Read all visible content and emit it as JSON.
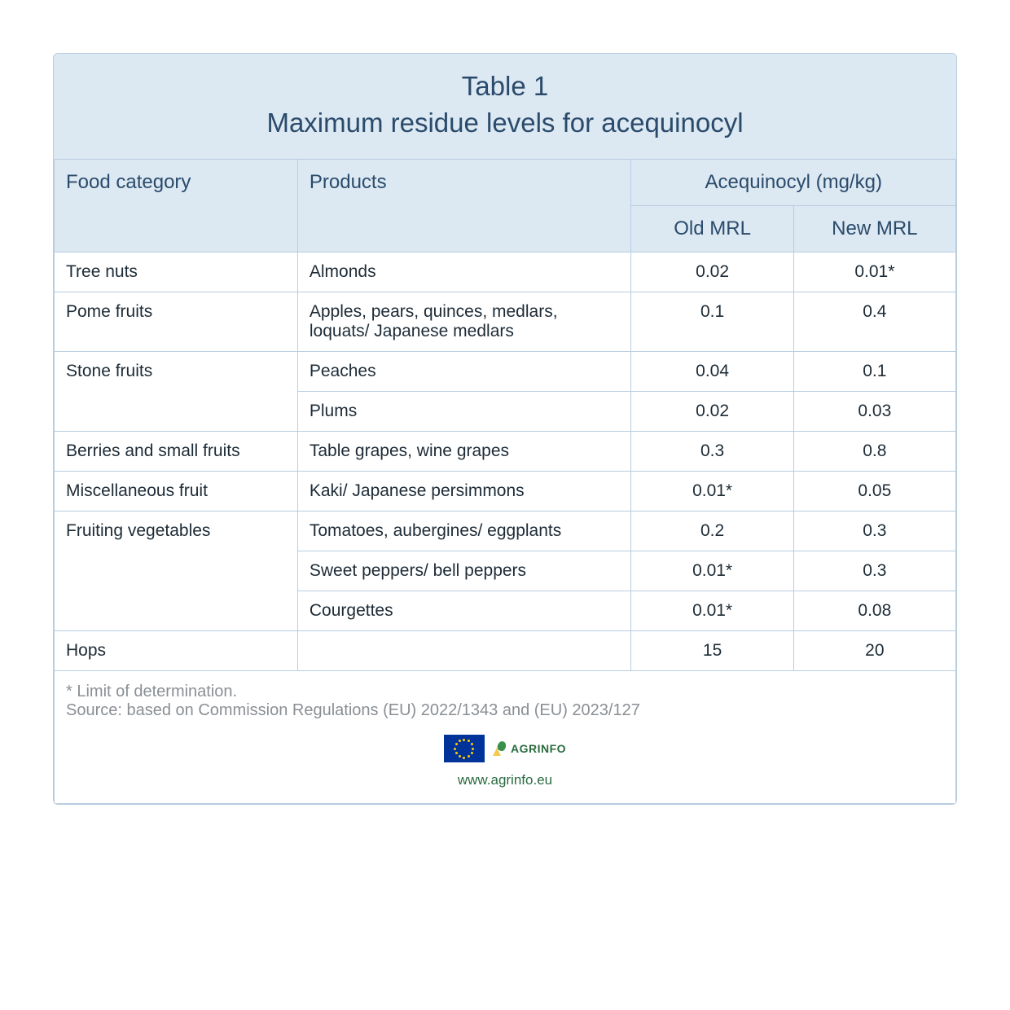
{
  "title": {
    "line1": "Table 1",
    "line2": "Maximum residue levels for acequinocyl"
  },
  "headers": {
    "food_category": "Food category",
    "products": "Products",
    "substance": "Acequinocyl (mg/kg)",
    "old_mrl": "Old MRL",
    "new_mrl": "New MRL"
  },
  "rows": [
    {
      "category": "Tree nuts",
      "product": "Almonds",
      "old": "0.02",
      "new": "0.01*",
      "rowspan": 1
    },
    {
      "category": "Pome fruits",
      "product": "Apples, pears, quinces, medlars, loquats/ Japanese medlars",
      "old": "0.1",
      "new": "0.4",
      "rowspan": 1
    },
    {
      "category": "Stone fruits",
      "product": "Peaches",
      "old": "0.04",
      "new": "0.1",
      "rowspan": 2
    },
    {
      "category": "",
      "product": "Plums",
      "old": "0.02",
      "new": "0.03",
      "rowspan": 0
    },
    {
      "category": "Berries and small fruits",
      "product": "Table grapes, wine grapes",
      "old": "0.3",
      "new": "0.8",
      "rowspan": 1
    },
    {
      "category": "Miscellaneous fruit",
      "product": "Kaki/ Japanese persimmons",
      "old": "0.01*",
      "new": "0.05",
      "rowspan": 1
    },
    {
      "category": "Fruiting vegetables",
      "product": "Tomatoes, aubergines/ eggplants",
      "old": "0.2",
      "new": "0.3",
      "rowspan": 3
    },
    {
      "category": "",
      "product": "Sweet peppers/ bell peppers",
      "old": "0.01*",
      "new": "0.3",
      "rowspan": 0
    },
    {
      "category": "",
      "product": "Courgettes",
      "old": "0.01*",
      "new": "0.08",
      "rowspan": 0
    },
    {
      "category": "Hops",
      "product": "",
      "old": "15",
      "new": "20",
      "rowspan": 1
    }
  ],
  "footer": {
    "note": "* Limit of determination.",
    "source": "Source: based on Commission Regulations (EU) 2022/1343 and (EU) 2023/127",
    "site": "www.agrinfo.eu",
    "agr_label": "AGRINFO"
  },
  "colors": {
    "header_bg": "#dce8f2",
    "border": "#b9cde0",
    "title_text": "#2a4b6b",
    "body_text": "#1d2b36",
    "footer_text": "#8a8f94",
    "link": "#2a6b3f",
    "eu_blue": "#003399",
    "eu_gold": "#ffcc00"
  }
}
